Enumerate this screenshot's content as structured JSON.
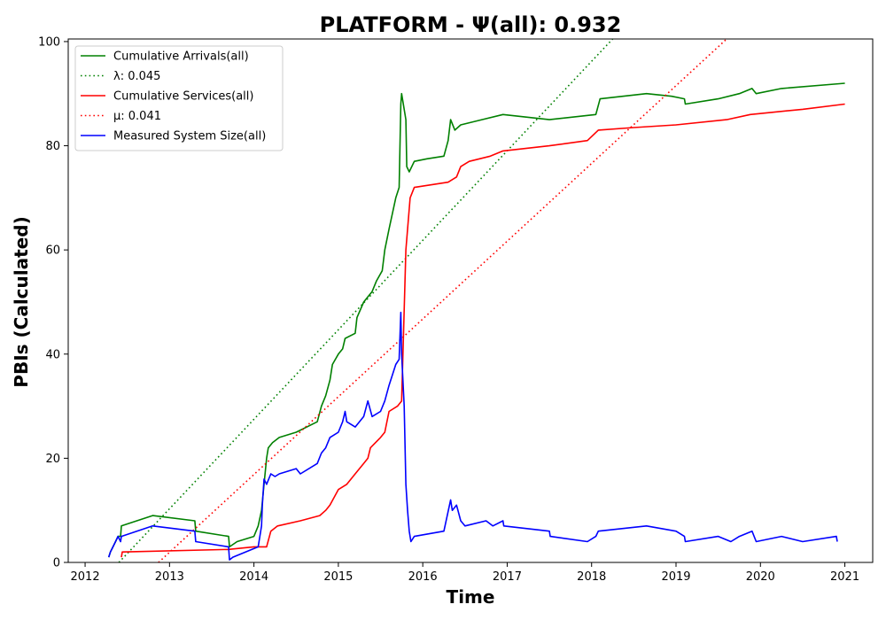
{
  "chart_data": {
    "type": "line",
    "title": "PLATFORM -  Ψ(all): 0.932",
    "xlabel": "Time",
    "ylabel": "PBIs (Calculated)",
    "xlim": [
      2011.8,
      2021.33
    ],
    "ylim": [
      0,
      100.5
    ],
    "x_ticks": [
      2012,
      2013,
      2014,
      2015,
      2016,
      2017,
      2018,
      2019,
      2020,
      2021
    ],
    "y_ticks": [
      0,
      20,
      40,
      60,
      80,
      100
    ],
    "grid": false,
    "legend_position": "top-left",
    "colors": {
      "green": "#008000",
      "red": "#ff0000",
      "blue": "#0000ff"
    },
    "series": [
      {
        "name": "Cumulative Arrivals(all)",
        "color": "#008000",
        "style": "solid",
        "points": [
          [
            2012.28,
            1
          ],
          [
            2012.3,
            2
          ],
          [
            2012.33,
            3
          ],
          [
            2012.36,
            4
          ],
          [
            2012.39,
            5
          ],
          [
            2012.42,
            5
          ],
          [
            2012.43,
            7
          ],
          [
            2012.8,
            9
          ],
          [
            2013.3,
            8
          ],
          [
            2013.31,
            6
          ],
          [
            2013.7,
            5
          ],
          [
            2013.71,
            3
          ],
          [
            2013.8,
            4
          ],
          [
            2014.0,
            5
          ],
          [
            2014.05,
            7
          ],
          [
            2014.09,
            10
          ],
          [
            2014.12,
            15
          ],
          [
            2014.15,
            20
          ],
          [
            2014.17,
            22
          ],
          [
            2014.22,
            23
          ],
          [
            2014.3,
            24
          ],
          [
            2014.5,
            25
          ],
          [
            2014.75,
            27
          ],
          [
            2014.8,
            30
          ],
          [
            2014.85,
            32
          ],
          [
            2014.9,
            35
          ],
          [
            2014.93,
            38
          ],
          [
            2015.0,
            40
          ],
          [
            2015.05,
            41
          ],
          [
            2015.08,
            43
          ],
          [
            2015.2,
            44
          ],
          [
            2015.22,
            47
          ],
          [
            2015.3,
            50
          ],
          [
            2015.35,
            51
          ],
          [
            2015.4,
            52
          ],
          [
            2015.45,
            54
          ],
          [
            2015.52,
            56
          ],
          [
            2015.55,
            60
          ],
          [
            2015.6,
            64
          ],
          [
            2015.68,
            70
          ],
          [
            2015.72,
            72
          ],
          [
            2015.74,
            88
          ],
          [
            2015.75,
            90
          ],
          [
            2015.8,
            85
          ],
          [
            2015.81,
            76
          ],
          [
            2015.84,
            75
          ],
          [
            2015.9,
            77
          ],
          [
            2016.05,
            77.5
          ],
          [
            2016.25,
            78
          ],
          [
            2016.3,
            81
          ],
          [
            2016.33,
            85
          ],
          [
            2016.38,
            83
          ],
          [
            2016.45,
            84
          ],
          [
            2016.7,
            85
          ],
          [
            2016.95,
            86
          ],
          [
            2017.5,
            85
          ],
          [
            2018.05,
            86
          ],
          [
            2018.1,
            89
          ],
          [
            2018.65,
            90
          ],
          [
            2018.95,
            89.5
          ],
          [
            2019.1,
            89
          ],
          [
            2019.11,
            88
          ],
          [
            2019.5,
            89
          ],
          [
            2019.75,
            90
          ],
          [
            2019.9,
            91
          ],
          [
            2019.95,
            90
          ],
          [
            2020.25,
            91
          ],
          [
            2021.0,
            92
          ]
        ]
      },
      {
        "name": "λ: 0.045",
        "color": "#008000",
        "style": "dotted",
        "points": [
          [
            2012.4,
            0
          ],
          [
            2018.25,
            100.5
          ]
        ]
      },
      {
        "name": "Cumulative Services(all)",
        "color": "#ff0000",
        "style": "solid",
        "points": [
          [
            2012.43,
            1
          ],
          [
            2012.44,
            2
          ],
          [
            2013.7,
            2.5
          ],
          [
            2014.0,
            3
          ],
          [
            2014.15,
            3
          ],
          [
            2014.2,
            6
          ],
          [
            2014.28,
            7
          ],
          [
            2014.55,
            8
          ],
          [
            2014.78,
            9
          ],
          [
            2014.85,
            10
          ],
          [
            2014.9,
            11
          ],
          [
            2015.0,
            14
          ],
          [
            2015.1,
            15
          ],
          [
            2015.2,
            17
          ],
          [
            2015.3,
            19
          ],
          [
            2015.35,
            20
          ],
          [
            2015.38,
            22
          ],
          [
            2015.5,
            24
          ],
          [
            2015.55,
            25
          ],
          [
            2015.6,
            29
          ],
          [
            2015.7,
            30
          ],
          [
            2015.75,
            31
          ],
          [
            2015.8,
            60
          ],
          [
            2015.85,
            70
          ],
          [
            2015.9,
            72
          ],
          [
            2016.3,
            73
          ],
          [
            2016.4,
            74
          ],
          [
            2016.45,
            76
          ],
          [
            2016.55,
            77
          ],
          [
            2016.8,
            78
          ],
          [
            2016.95,
            79
          ],
          [
            2017.5,
            80
          ],
          [
            2017.95,
            81
          ],
          [
            2018.08,
            83
          ],
          [
            2018.5,
            83.5
          ],
          [
            2019.0,
            84
          ],
          [
            2019.6,
            85
          ],
          [
            2019.88,
            86
          ],
          [
            2020.5,
            87
          ],
          [
            2021.0,
            88
          ]
        ]
      },
      {
        "name": "μ: 0.041",
        "color": "#ff0000",
        "style": "dotted",
        "points": [
          [
            2012.87,
            0
          ],
          [
            2019.6,
            100.5
          ]
        ]
      },
      {
        "name": "Measured System Size(all)",
        "color": "#0000ff",
        "style": "solid",
        "points": [
          [
            2012.28,
            1
          ],
          [
            2012.3,
            2
          ],
          [
            2012.33,
            3
          ],
          [
            2012.36,
            4
          ],
          [
            2012.39,
            5
          ],
          [
            2012.42,
            4
          ],
          [
            2012.43,
            5
          ],
          [
            2012.8,
            7
          ],
          [
            2013.3,
            6
          ],
          [
            2013.31,
            4
          ],
          [
            2013.7,
            3
          ],
          [
            2013.71,
            0.5
          ],
          [
            2013.75,
            1
          ],
          [
            2013.9,
            2
          ],
          [
            2014.05,
            3
          ],
          [
            2014.09,
            7
          ],
          [
            2014.1,
            11
          ],
          [
            2014.12,
            16
          ],
          [
            2014.15,
            15
          ],
          [
            2014.2,
            17
          ],
          [
            2014.25,
            16.5
          ],
          [
            2014.3,
            17
          ],
          [
            2014.5,
            18
          ],
          [
            2014.55,
            17
          ],
          [
            2014.75,
            19
          ],
          [
            2014.8,
            21
          ],
          [
            2014.85,
            22
          ],
          [
            2014.9,
            24
          ],
          [
            2015.0,
            25
          ],
          [
            2015.05,
            27
          ],
          [
            2015.08,
            29
          ],
          [
            2015.1,
            27
          ],
          [
            2015.2,
            26
          ],
          [
            2015.3,
            28
          ],
          [
            2015.35,
            31
          ],
          [
            2015.4,
            28
          ],
          [
            2015.5,
            29
          ],
          [
            2015.55,
            31
          ],
          [
            2015.6,
            34
          ],
          [
            2015.68,
            38
          ],
          [
            2015.72,
            39
          ],
          [
            2015.74,
            48
          ],
          [
            2015.75,
            40
          ],
          [
            2015.78,
            30
          ],
          [
            2015.8,
            15
          ],
          [
            2015.82,
            10
          ],
          [
            2015.84,
            6
          ],
          [
            2015.86,
            4
          ],
          [
            2015.9,
            5
          ],
          [
            2016.25,
            6
          ],
          [
            2016.33,
            12
          ],
          [
            2016.35,
            10
          ],
          [
            2016.4,
            11
          ],
          [
            2016.45,
            8
          ],
          [
            2016.5,
            7
          ],
          [
            2016.75,
            8
          ],
          [
            2016.83,
            7
          ],
          [
            2016.95,
            8
          ],
          [
            2016.96,
            7
          ],
          [
            2017.5,
            6
          ],
          [
            2017.51,
            5
          ],
          [
            2017.95,
            4
          ],
          [
            2018.05,
            5
          ],
          [
            2018.08,
            6
          ],
          [
            2018.65,
            7
          ],
          [
            2019.0,
            6
          ],
          [
            2019.1,
            5
          ],
          [
            2019.11,
            4
          ],
          [
            2019.5,
            5
          ],
          [
            2019.65,
            4
          ],
          [
            2019.75,
            5
          ],
          [
            2019.9,
            6
          ],
          [
            2019.95,
            4
          ],
          [
            2020.25,
            5
          ],
          [
            2020.5,
            4
          ],
          [
            2020.9,
            5
          ],
          [
            2020.91,
            4
          ]
        ]
      }
    ]
  }
}
